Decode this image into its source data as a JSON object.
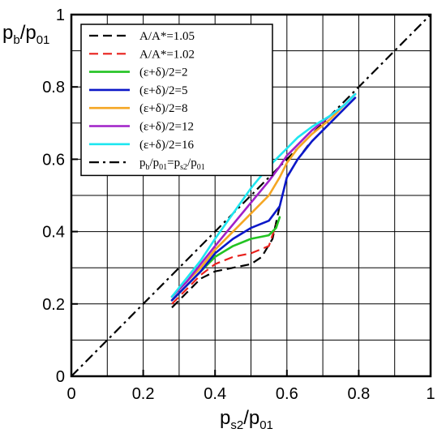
{
  "chart_data": {
    "type": "line",
    "xlabel": {
      "base": "p",
      "sub": "s2",
      "mid": "/p",
      "sub2": "01"
    },
    "ylabel": {
      "base": "p",
      "sub": "b",
      "mid": "/p",
      "sub2": "01"
    },
    "xlim": [
      0,
      1
    ],
    "ylim": [
      0,
      1
    ],
    "xticks": [
      0,
      0.2,
      0.4,
      0.6,
      0.8,
      1
    ],
    "yticks": [
      0,
      0.2,
      0.4,
      0.6,
      0.8,
      1
    ],
    "xtick_labels": [
      "0",
      "0.2",
      "0.4",
      "0.6",
      "0.8",
      "1"
    ],
    "ytick_labels": [
      "0",
      "0.2",
      "0.4",
      "0.6",
      "0.8",
      "1"
    ],
    "grid_step": 0.1,
    "grid": true,
    "legend_position": "top-left",
    "series": [
      {
        "name": "A/A*=1.05",
        "color": "#000000",
        "dash": "dash",
        "x": [
          0.28,
          0.32,
          0.36,
          0.4,
          0.45,
          0.5,
          0.53,
          0.56,
          0.58,
          0.6,
          0.63,
          0.66,
          0.7,
          0.75,
          0.79
        ],
        "y": [
          0.19,
          0.23,
          0.27,
          0.29,
          0.3,
          0.31,
          0.33,
          0.38,
          0.47,
          0.55,
          0.6,
          0.64,
          0.68,
          0.73,
          0.77
        ]
      },
      {
        "name": "A/A*=1.02",
        "color": "#e8201c",
        "dash": "dash",
        "x": [
          0.28,
          0.32,
          0.36,
          0.4,
          0.45,
          0.5,
          0.55,
          0.57
        ],
        "y": [
          0.2,
          0.24,
          0.28,
          0.31,
          0.33,
          0.34,
          0.36,
          0.42
        ]
      },
      {
        "name": "(ε+δ)/2=2",
        "color": "#22c322",
        "dash": "solid",
        "x": [
          0.28,
          0.32,
          0.36,
          0.4,
          0.45,
          0.5,
          0.55,
          0.57,
          0.58
        ],
        "y": [
          0.21,
          0.25,
          0.29,
          0.33,
          0.36,
          0.38,
          0.39,
          0.41,
          0.44
        ]
      },
      {
        "name": "(ε+δ)/2=5",
        "color": "#0c18c8",
        "dash": "solid",
        "x": [
          0.28,
          0.32,
          0.36,
          0.4,
          0.45,
          0.5,
          0.55,
          0.58,
          0.6,
          0.63,
          0.67,
          0.72,
          0.76,
          0.79
        ],
        "y": [
          0.21,
          0.25,
          0.29,
          0.34,
          0.38,
          0.41,
          0.43,
          0.47,
          0.55,
          0.6,
          0.65,
          0.7,
          0.74,
          0.77
        ]
      },
      {
        "name": "(ε+δ)/2=8",
        "color": "#f5a623",
        "dash": "solid",
        "x": [
          0.28,
          0.32,
          0.36,
          0.4,
          0.45,
          0.5,
          0.55,
          0.58,
          0.6,
          0.63,
          0.67,
          0.72,
          0.76,
          0.79
        ],
        "y": [
          0.22,
          0.26,
          0.3,
          0.35,
          0.4,
          0.45,
          0.5,
          0.55,
          0.59,
          0.63,
          0.67,
          0.71,
          0.75,
          0.78
        ]
      },
      {
        "name": "(ε+δ)/2=12",
        "color": "#a020c8",
        "dash": "solid",
        "x": [
          0.28,
          0.32,
          0.36,
          0.4,
          0.45,
          0.5,
          0.55,
          0.58,
          0.6,
          0.63,
          0.67,
          0.72,
          0.76,
          0.79
        ],
        "y": [
          0.22,
          0.26,
          0.31,
          0.36,
          0.42,
          0.48,
          0.54,
          0.58,
          0.61,
          0.64,
          0.68,
          0.72,
          0.75,
          0.78
        ]
      },
      {
        "name": "(ε+δ)/2=16",
        "color": "#1ee6f0",
        "dash": "solid",
        "x": [
          0.28,
          0.32,
          0.36,
          0.4,
          0.45,
          0.5,
          0.55,
          0.58,
          0.6,
          0.63,
          0.67,
          0.72,
          0.76,
          0.79
        ],
        "y": [
          0.22,
          0.27,
          0.32,
          0.38,
          0.45,
          0.52,
          0.58,
          0.61,
          0.63,
          0.66,
          0.69,
          0.72,
          0.75,
          0.78
        ]
      },
      {
        "name": "pb/p01=ps2/p01",
        "color": "#000000",
        "dash": "dashdot",
        "label_parts": [
          {
            "t": "p"
          },
          {
            "t": "b",
            "sub": true
          },
          {
            "t": "/p"
          },
          {
            "t": "01",
            "sub": true
          },
          {
            "t": "=p"
          },
          {
            "t": "s2",
            "sub": true
          },
          {
            "t": "/p"
          },
          {
            "t": "01",
            "sub": true
          }
        ],
        "x": [
          0,
          1
        ],
        "y": [
          0,
          1
        ]
      }
    ]
  }
}
